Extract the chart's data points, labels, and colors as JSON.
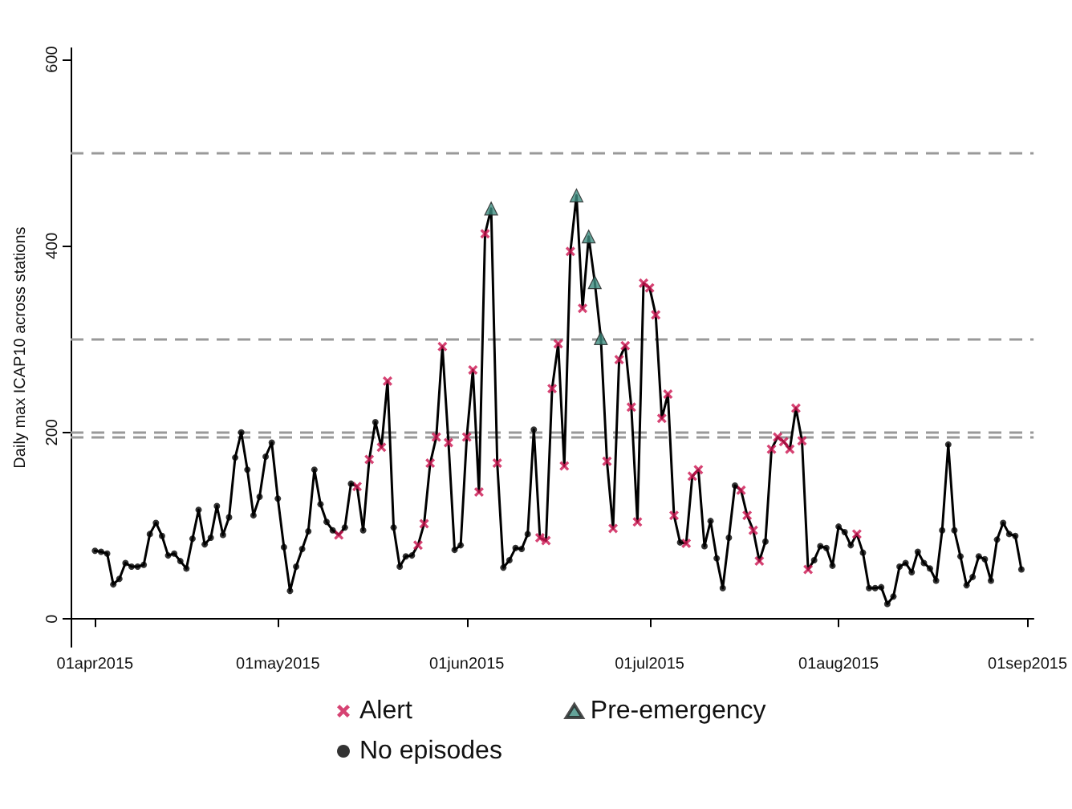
{
  "chart_data": {
    "type": "line",
    "ylabel": "Daily max ICAP10 across stations",
    "x": [
      "2015-04-01",
      "2015-04-02",
      "2015-04-03",
      "2015-04-04",
      "2015-04-05",
      "2015-04-06",
      "2015-04-07",
      "2015-04-08",
      "2015-04-09",
      "2015-04-10",
      "2015-04-11",
      "2015-04-12",
      "2015-04-13",
      "2015-04-14",
      "2015-04-15",
      "2015-04-16",
      "2015-04-17",
      "2015-04-18",
      "2015-04-19",
      "2015-04-20",
      "2015-04-21",
      "2015-04-22",
      "2015-04-23",
      "2015-04-24",
      "2015-04-25",
      "2015-04-26",
      "2015-04-27",
      "2015-04-28",
      "2015-04-29",
      "2015-04-30",
      "2015-05-01",
      "2015-05-02",
      "2015-05-03",
      "2015-05-04",
      "2015-05-05",
      "2015-05-06",
      "2015-05-07",
      "2015-05-08",
      "2015-05-09",
      "2015-05-10",
      "2015-05-11",
      "2015-05-12",
      "2015-05-13",
      "2015-05-14",
      "2015-05-15",
      "2015-05-16",
      "2015-05-17",
      "2015-05-18",
      "2015-05-19",
      "2015-05-20",
      "2015-05-21",
      "2015-05-22",
      "2015-05-23",
      "2015-05-24",
      "2015-05-25",
      "2015-05-26",
      "2015-05-27",
      "2015-05-28",
      "2015-05-29",
      "2015-05-30",
      "2015-05-31",
      "2015-06-01",
      "2015-06-02",
      "2015-06-03",
      "2015-06-04",
      "2015-06-05",
      "2015-06-06",
      "2015-06-07",
      "2015-06-08",
      "2015-06-09",
      "2015-06-10",
      "2015-06-11",
      "2015-06-12",
      "2015-06-13",
      "2015-06-14",
      "2015-06-15",
      "2015-06-16",
      "2015-06-17",
      "2015-06-18",
      "2015-06-19",
      "2015-06-20",
      "2015-06-21",
      "2015-06-22",
      "2015-06-23",
      "2015-06-24",
      "2015-06-25",
      "2015-06-26",
      "2015-06-27",
      "2015-06-28",
      "2015-06-29",
      "2015-06-30",
      "2015-07-01",
      "2015-07-02",
      "2015-07-03",
      "2015-07-04",
      "2015-07-05",
      "2015-07-06",
      "2015-07-07",
      "2015-07-08",
      "2015-07-09",
      "2015-07-10",
      "2015-07-11",
      "2015-07-12",
      "2015-07-13",
      "2015-07-14",
      "2015-07-15",
      "2015-07-16",
      "2015-07-17",
      "2015-07-18",
      "2015-07-19",
      "2015-07-20",
      "2015-07-21",
      "2015-07-22",
      "2015-07-23",
      "2015-07-24",
      "2015-07-25",
      "2015-07-26",
      "2015-07-27",
      "2015-07-28",
      "2015-07-29",
      "2015-07-30",
      "2015-07-31",
      "2015-08-01",
      "2015-08-02",
      "2015-08-03",
      "2015-08-04",
      "2015-08-05",
      "2015-08-06",
      "2015-08-07",
      "2015-08-08",
      "2015-08-09",
      "2015-08-10",
      "2015-08-11",
      "2015-08-12",
      "2015-08-13",
      "2015-08-14",
      "2015-08-15",
      "2015-08-16",
      "2015-08-17",
      "2015-08-18",
      "2015-08-19",
      "2015-08-20",
      "2015-08-21",
      "2015-08-22",
      "2015-08-23",
      "2015-08-24",
      "2015-08-25",
      "2015-08-26",
      "2015-08-27",
      "2015-08-28",
      "2015-08-29",
      "2015-08-30",
      "2015-08-31"
    ],
    "series": [
      {
        "color": "#000000",
        "marker": "none",
        "line_style": "solid",
        "values": [
          73,
          72,
          70,
          37,
          43,
          60,
          56,
          56,
          58,
          91,
          103,
          89,
          68,
          70,
          62,
          54,
          86,
          117,
          80,
          87,
          121,
          90,
          109,
          173,
          200,
          160,
          111,
          131,
          174,
          189,
          129,
          77,
          30,
          56,
          75,
          94,
          160,
          123,
          104,
          95,
          90,
          98,
          145,
          142,
          95,
          171,
          211,
          184,
          255,
          98,
          56,
          67,
          68,
          79,
          102,
          167,
          195,
          292,
          189,
          74,
          79,
          195,
          267,
          136,
          413,
          440,
          167,
          55,
          63,
          76,
          75,
          91,
          203,
          87,
          84,
          247,
          295,
          164,
          394,
          454,
          333,
          410,
          361,
          301,
          169,
          97,
          278,
          293,
          227,
          104,
          360,
          355,
          326,
          215,
          241,
          111,
          82,
          81,
          153,
          160,
          78,
          105,
          65,
          33,
          87,
          143,
          138,
          111,
          95,
          62,
          83,
          182,
          195,
          190,
          182,
          226,
          191,
          53,
          63,
          78,
          76,
          57,
          99,
          93,
          79,
          91,
          71,
          33,
          33,
          34,
          16,
          24,
          56,
          60,
          50,
          72,
          60,
          54,
          41,
          95,
          187,
          95,
          67,
          36,
          45,
          67,
          64,
          41,
          85,
          103,
          91,
          89,
          53
        ]
      },
      {
        "type": "scatter",
        "name": "Alert",
        "color": "#cc1450",
        "marker": "cross",
        "x": [
          "2015-05-11",
          "2015-05-14",
          "2015-05-16",
          "2015-05-18",
          "2015-05-19",
          "2015-05-24",
          "2015-05-25",
          "2015-05-26",
          "2015-05-27",
          "2015-05-28",
          "2015-05-29",
          "2015-06-01",
          "2015-06-02",
          "2015-06-03",
          "2015-06-04",
          "2015-06-06",
          "2015-06-13",
          "2015-06-14",
          "2015-06-15",
          "2015-06-16",
          "2015-06-17",
          "2015-06-18",
          "2015-06-20",
          "2015-06-24",
          "2015-06-25",
          "2015-06-26",
          "2015-06-27",
          "2015-06-28",
          "2015-06-29",
          "2015-06-30",
          "2015-07-01",
          "2015-07-02",
          "2015-07-03",
          "2015-07-04",
          "2015-07-05",
          "2015-07-07",
          "2015-07-08",
          "2015-07-09",
          "2015-07-16",
          "2015-07-17",
          "2015-07-18",
          "2015-07-19",
          "2015-07-21",
          "2015-07-22",
          "2015-07-23",
          "2015-07-24",
          "2015-07-25",
          "2015-07-26",
          "2015-07-27",
          "2015-08-04"
        ],
        "values": [
          90,
          142,
          171,
          184,
          255,
          79,
          102,
          167,
          195,
          292,
          189,
          195,
          267,
          136,
          413,
          167,
          87,
          84,
          247,
          295,
          164,
          394,
          333,
          169,
          97,
          278,
          293,
          227,
          104,
          360,
          355,
          326,
          215,
          241,
          111,
          81,
          153,
          160,
          138,
          111,
          95,
          62,
          182,
          195,
          190,
          182,
          226,
          191,
          53,
          91
        ]
      },
      {
        "type": "scatter",
        "name": "Pre-emergency",
        "color": "#3d8c80",
        "marker": "triangle",
        "x": [
          "2015-06-05",
          "2015-06-19",
          "2015-06-21",
          "2015-06-22",
          "2015-06-23"
        ],
        "values": [
          440,
          454,
          410,
          361,
          301
        ]
      },
      {
        "type": "scatter",
        "name": "No episodes",
        "color": "#000000",
        "marker": "circle",
        "values": [
          73,
          72,
          70,
          37,
          43,
          60,
          56,
          56,
          58,
          91,
          103,
          89,
          68,
          70,
          62,
          54,
          86,
          117,
          80,
          87,
          121,
          90,
          109,
          173,
          200,
          160,
          111,
          131,
          174,
          189,
          129,
          77,
          30,
          56,
          75,
          94,
          160,
          123,
          104,
          95,
          null,
          98,
          145,
          null,
          95,
          null,
          211,
          null,
          null,
          98,
          56,
          67,
          68,
          null,
          null,
          null,
          null,
          null,
          null,
          74,
          79,
          null,
          null,
          null,
          null,
          null,
          null,
          55,
          63,
          76,
          75,
          91,
          203,
          null,
          null,
          null,
          null,
          null,
          null,
          null,
          null,
          null,
          null,
          null,
          null,
          null,
          null,
          null,
          null,
          null,
          null,
          null,
          null,
          null,
          null,
          null,
          82,
          null,
          null,
          null,
          78,
          105,
          65,
          33,
          87,
          143,
          null,
          null,
          null,
          null,
          83,
          null,
          null,
          null,
          null,
          null,
          null,
          null,
          63,
          78,
          76,
          57,
          99,
          93,
          79,
          null,
          71,
          33,
          33,
          34,
          16,
          24,
          56,
          60,
          50,
          72,
          60,
          54,
          41,
          95,
          187,
          95,
          67,
          36,
          45,
          67,
          64,
          41,
          85,
          103,
          91,
          89,
          53
        ]
      }
    ],
    "xlim": [
      "2015-03-28",
      "2015-09-02"
    ],
    "xticks": [
      {
        "value": "2015-04-01",
        "label": "01apr2015"
      },
      {
        "value": "2015-05-01",
        "label": "01may2015"
      },
      {
        "value": "2015-06-01",
        "label": "01jun2015"
      },
      {
        "value": "2015-07-01",
        "label": "01jul2015"
      },
      {
        "value": "2015-08-01",
        "label": "01aug2015"
      },
      {
        "value": "2015-09-01",
        "label": "01sep2015"
      }
    ],
    "ylim": [
      -30,
      612
    ],
    "yticks": [
      0,
      200,
      400,
      600
    ],
    "ref_lines": [
      {
        "axis": "y",
        "value": 500,
        "color": "#999999",
        "line_style": "dashed"
      },
      {
        "axis": "y",
        "value": 300,
        "color": "#999999",
        "line_style": "dashed"
      },
      {
        "axis": "y",
        "value": 200,
        "color": "#999999",
        "line_style": "dashed"
      },
      {
        "axis": "y",
        "value": 195,
        "color": "#999999",
        "line_style": "dashed"
      }
    ],
    "grid": false,
    "legend": "bottom"
  }
}
